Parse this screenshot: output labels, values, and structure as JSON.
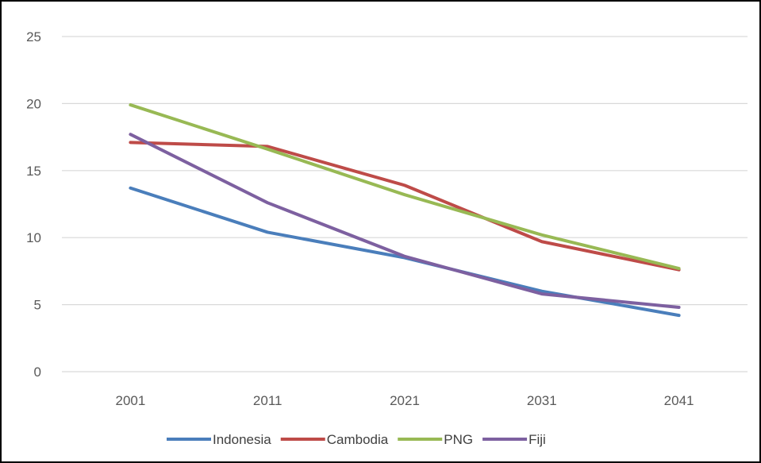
{
  "chart_data": {
    "type": "line",
    "title": "",
    "xlabel": "",
    "ylabel": "",
    "categories": [
      "2001",
      "2011",
      "2021",
      "2031",
      "2041"
    ],
    "ylim": [
      0,
      25
    ],
    "yticks": [
      "0",
      "5",
      "10",
      "15",
      "20",
      "25"
    ],
    "grid": "horizontal",
    "legend": "bottom",
    "series": [
      {
        "name": "Indonesia",
        "color": "#4a7ebb",
        "values": [
          13.7,
          10.4,
          8.5,
          6.0,
          4.2
        ]
      },
      {
        "name": "Cambodia",
        "color": "#be4b48",
        "values": [
          17.1,
          16.8,
          13.9,
          9.7,
          7.6
        ]
      },
      {
        "name": "PNG",
        "color": "#98b954",
        "values": [
          19.9,
          16.6,
          13.2,
          10.2,
          7.7
        ]
      },
      {
        "name": "Fiji",
        "color": "#7d60a0",
        "values": [
          17.7,
          12.6,
          8.6,
          5.8,
          4.8
        ]
      }
    ]
  }
}
